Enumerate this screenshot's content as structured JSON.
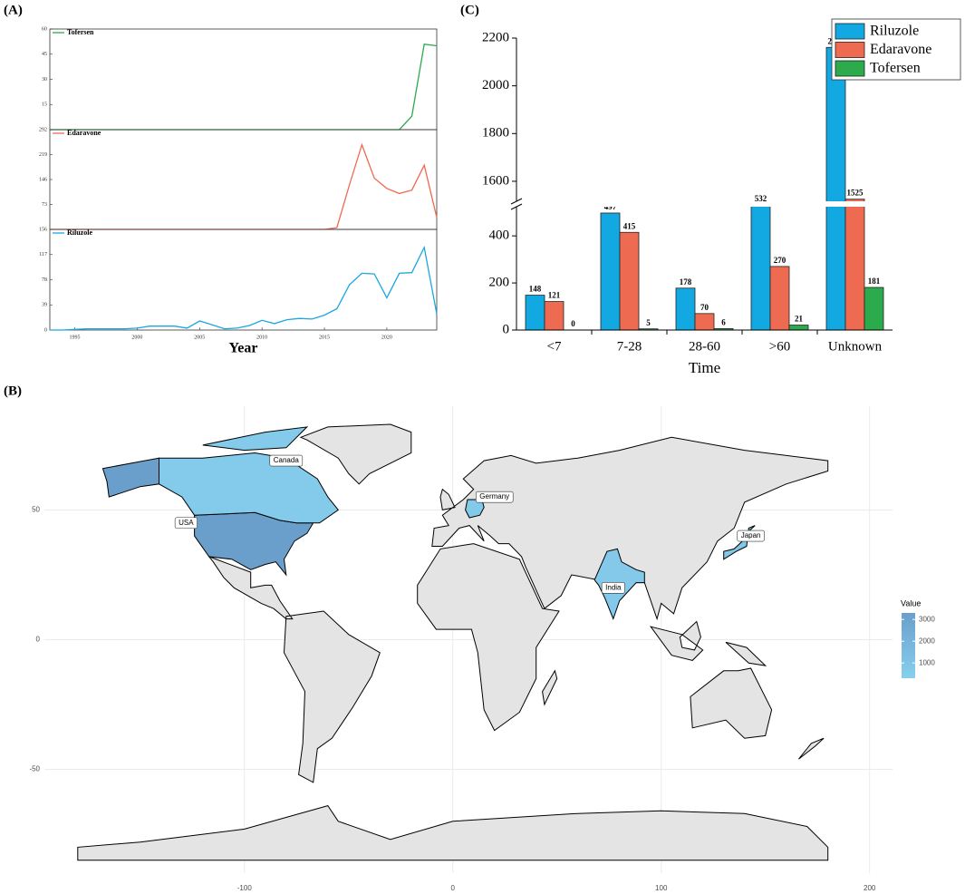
{
  "chart_data": [
    {
      "type": "line",
      "panel": "(A)",
      "x": [
        1993,
        1994,
        1995,
        1996,
        1997,
        1998,
        1999,
        2000,
        2001,
        2002,
        2003,
        2004,
        2005,
        2006,
        2007,
        2008,
        2009,
        2010,
        2011,
        2012,
        2013,
        2014,
        2015,
        2016,
        2017,
        2018,
        2019,
        2020,
        2021,
        2022,
        2023,
        2024
      ],
      "xlim": [
        1993,
        2024
      ],
      "ylim": [
        0,
        60
      ],
      "yticks": [
        15,
        30,
        45,
        60
      ],
      "series": [
        {
          "name": "Tofersen",
          "color": "#2ca94a",
          "values": [
            0,
            0,
            0,
            0,
            0,
            0,
            0,
            0,
            0,
            0,
            0,
            0,
            0,
            0,
            0,
            0,
            0,
            0,
            0,
            0,
            0,
            0,
            0,
            0,
            0,
            0,
            0,
            0,
            0,
            8,
            51,
            50
          ]
        }
      ]
    },
    {
      "type": "line",
      "x": [
        1993,
        1994,
        1995,
        1996,
        1997,
        1998,
        1999,
        2000,
        2001,
        2002,
        2003,
        2004,
        2005,
        2006,
        2007,
        2008,
        2009,
        2010,
        2011,
        2012,
        2013,
        2014,
        2015,
        2016,
        2017,
        2018,
        2019,
        2020,
        2021,
        2022,
        2023,
        2024
      ],
      "xlim": [
        1993,
        2024
      ],
      "ylim": [
        0,
        292
      ],
      "yticks": [
        73,
        146,
        219,
        292
      ],
      "series": [
        {
          "name": "Edaravone",
          "color": "#ef6a4f",
          "values": [
            0,
            0,
            0,
            0,
            0,
            0,
            0,
            0,
            0,
            0,
            0,
            0,
            0,
            0,
            0,
            0,
            0,
            0,
            0,
            0,
            0,
            0,
            0,
            5,
            130,
            248,
            150,
            120,
            105,
            115,
            188,
            35
          ]
        }
      ]
    },
    {
      "type": "line",
      "x": [
        1993,
        1994,
        1995,
        1996,
        1997,
        1998,
        1999,
        2000,
        2001,
        2002,
        2003,
        2004,
        2005,
        2006,
        2007,
        2008,
        2009,
        2010,
        2011,
        2012,
        2013,
        2014,
        2015,
        2016,
        2017,
        2018,
        2019,
        2020,
        2021,
        2022,
        2023,
        2024
      ],
      "xlim": [
        1993,
        2024
      ],
      "xticks": [
        1995,
        2000,
        2005,
        2010,
        2015,
        2020
      ],
      "xlabel": "Year",
      "ylim": [
        0,
        156
      ],
      "yticks": [
        0,
        39,
        78,
        117,
        156
      ],
      "series": [
        {
          "name": "Riluzole",
          "color": "#1aa7e0",
          "values": [
            0,
            0,
            1,
            2,
            2,
            2,
            2,
            3,
            6,
            6,
            6,
            3,
            14,
            8,
            2,
            3,
            7,
            15,
            10,
            16,
            18,
            17,
            23,
            33,
            70,
            88,
            87,
            50,
            88,
            89,
            128,
            25
          ]
        }
      ]
    },
    {
      "type": "bar",
      "panel": "(C)",
      "categories": [
        "<7",
        "7-28",
        "28-60",
        ">60",
        "Unknown"
      ],
      "xlabel": "Time",
      "ylim_segments": [
        [
          0,
          520
        ],
        [
          1520,
          2200
        ]
      ],
      "yticks": [
        0,
        200,
        400,
        1600,
        1800,
        2000,
        2200
      ],
      "legend": "upper right",
      "series": [
        {
          "name": "Riluzole",
          "color": "#12a9e2",
          "values": [
            148,
            497,
            178,
            532,
            2161
          ]
        },
        {
          "name": "Edaravone",
          "color": "#ee6a50",
          "values": [
            121,
            415,
            70,
            270,
            1525
          ]
        },
        {
          "name": "Tofersen",
          "color": "#2bab4c",
          "values": [
            0,
            5,
            6,
            21,
            181
          ]
        }
      ]
    },
    {
      "type": "choropleth",
      "panel": "(B)",
      "xlim": [
        -196,
        211
      ],
      "ylim": [
        -90,
        90
      ],
      "xticks": [
        -100,
        0,
        100,
        200
      ],
      "yticks": [
        -50,
        0,
        50
      ],
      "grid": true,
      "legend_title": "Value",
      "clim": [
        300,
        3300
      ],
      "colorbar_ticks": [
        1000,
        2000,
        3000
      ],
      "colors": [
        "#87cfee",
        "#6a9fcb"
      ],
      "regions": [
        {
          "name": "USA",
          "value": 3300
        },
        {
          "name": "Canada",
          "value": 600
        },
        {
          "name": "Germany",
          "value": 700
        },
        {
          "name": "Japan",
          "value": 800
        },
        {
          "name": "India",
          "value": 650
        }
      ]
    }
  ]
}
